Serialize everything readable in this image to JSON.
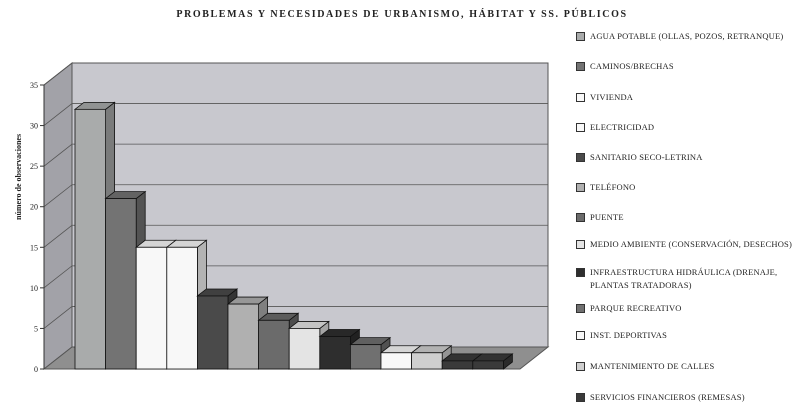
{
  "chart_data": {
    "type": "bar",
    "title": "PROBLEMAS Y NECESIDADES DE URBANISMO, HÁBITAT Y SS. PÚBLICOS",
    "ylabel": "número de observaciones",
    "xlabel": "",
    "ylim": [
      0,
      35
    ],
    "yticks": [
      "0",
      "5",
      "10",
      "15",
      "20",
      "25",
      "30",
      "35"
    ],
    "grid": true,
    "three_d": true,
    "legend_position": "right",
    "series": [
      {
        "name": "AGUA POTABLE (OLLAS, POZOS, RETRANQUE)",
        "value": 32,
        "color": "#a9abab"
      },
      {
        "name": "CAMINOS/BRECHAS",
        "value": 21,
        "color": "#737373"
      },
      {
        "name": "VIVIENDA",
        "value": 15,
        "color": "#f8f8f8"
      },
      {
        "name": "ELECTRICIDAD",
        "value": 15,
        "color": "#f8f8f8"
      },
      {
        "name": "SANITARIO SECO-LETRINA",
        "value": 9,
        "color": "#4a4a4a"
      },
      {
        "name": "TELÉFONO",
        "value": 8,
        "color": "#b0b0b0"
      },
      {
        "name": "PUENTE",
        "value": 6,
        "color": "#6b6b6b"
      },
      {
        "name": "MEDIO AMBIENTE (CONSERVACIÓN, DESECHOS)",
        "value": 5,
        "color": "#e4e4e4"
      },
      {
        "name": "INFRAESTRUCTURA HIDRÁULICA (DRENAJE, PLANTAS TRATADORAS)",
        "value": 4,
        "color": "#2e2e2e"
      },
      {
        "name": "PARQUE RECREATIVO",
        "value": 3,
        "color": "#707070"
      },
      {
        "name": "INST. DEPORTIVAS",
        "value": 2,
        "color": "#f8f8f8"
      },
      {
        "name": "MANTENIMIENTO DE CALLES",
        "value": 2,
        "color": "#cfcfcf"
      },
      {
        "name": "SERVICIOS FINANCIEROS (REMESAS)",
        "value": 1,
        "color": "#3a3a3a"
      },
      {
        "name": "",
        "value": 1,
        "color": "#3a3a3a"
      }
    ]
  }
}
